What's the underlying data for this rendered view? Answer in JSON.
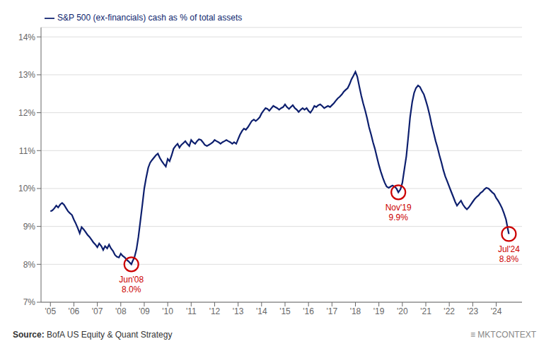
{
  "chart_data": {
    "type": "line",
    "source": "Source: BofA US Equity & Quant Strategy",
    "credit": "≡ MKTCONTEXT",
    "xlim": [
      2004.6,
      2025.1
    ],
    "xticks": [
      {
        "value": 2005,
        "label": "'05"
      },
      {
        "value": 2006,
        "label": "'06"
      },
      {
        "value": 2007,
        "label": "'07"
      },
      {
        "value": 2008,
        "label": "'08"
      },
      {
        "value": 2009,
        "label": "'09"
      },
      {
        "value": 2010,
        "label": "'10"
      },
      {
        "value": 2011,
        "label": "'11"
      },
      {
        "value": 2012,
        "label": "'12"
      },
      {
        "value": 2013,
        "label": "'13"
      },
      {
        "value": 2014,
        "label": "'14"
      },
      {
        "value": 2015,
        "label": "'15"
      },
      {
        "value": 2016,
        "label": "'16"
      },
      {
        "value": 2017,
        "label": "'17"
      },
      {
        "value": 2018,
        "label": "'18"
      },
      {
        "value": 2019,
        "label": "'19"
      },
      {
        "value": 2020,
        "label": "'20"
      },
      {
        "value": 2021,
        "label": "'21"
      },
      {
        "value": 2022,
        "label": "'22"
      },
      {
        "value": 2023,
        "label": "'23"
      },
      {
        "value": 2024,
        "label": "'24"
      }
    ],
    "ylim": [
      0.07,
      0.1425
    ],
    "yticks": [
      {
        "value": 0.07,
        "label": "7%"
      },
      {
        "value": 0.08,
        "label": "8%"
      },
      {
        "value": 0.09,
        "label": "9%"
      },
      {
        "value": 0.1,
        "label": "10%"
      },
      {
        "value": 0.11,
        "label": "11%"
      },
      {
        "value": 0.12,
        "label": "12%"
      },
      {
        "value": 0.13,
        "label": "13%"
      },
      {
        "value": 0.14,
        "label": "14%"
      }
    ],
    "grid": true,
    "legend": "upper left",
    "x": [
      2005,
      2005.08,
      2005.17,
      2005.25,
      2005.33,
      2005.42,
      2005.5,
      2005.58,
      2005.67,
      2005.75,
      2005.83,
      2005.92,
      2006,
      2006.08,
      2006.17,
      2006.25,
      2006.33,
      2006.42,
      2006.5,
      2006.58,
      2006.67,
      2006.75,
      2006.83,
      2006.92,
      2007,
      2007.08,
      2007.17,
      2007.25,
      2007.33,
      2007.42,
      2007.5,
      2007.58,
      2007.67,
      2007.75,
      2007.83,
      2007.92,
      2008,
      2008.08,
      2008.17,
      2008.25,
      2008.33,
      2008.42,
      2008.45,
      2008.5,
      2008.58,
      2008.67,
      2008.75,
      2008.83,
      2008.92,
      2009,
      2009.08,
      2009.17,
      2009.25,
      2009.33,
      2009.42,
      2009.5,
      2009.58,
      2009.67,
      2009.75,
      2009.83,
      2009.92,
      2010,
      2010.08,
      2010.17,
      2010.25,
      2010.33,
      2010.42,
      2010.5,
      2010.58,
      2010.67,
      2010.75,
      2010.83,
      2010.92,
      2011,
      2011.08,
      2011.17,
      2011.25,
      2011.33,
      2011.42,
      2011.5,
      2011.58,
      2011.67,
      2011.75,
      2011.83,
      2011.92,
      2012,
      2012.08,
      2012.17,
      2012.25,
      2012.33,
      2012.42,
      2012.5,
      2012.58,
      2012.67,
      2012.75,
      2012.83,
      2012.92,
      2013,
      2013.08,
      2013.17,
      2013.25,
      2013.33,
      2013.42,
      2013.5,
      2013.58,
      2013.67,
      2013.75,
      2013.83,
      2013.92,
      2014,
      2014.08,
      2014.17,
      2014.25,
      2014.33,
      2014.42,
      2014.5,
      2014.58,
      2014.67,
      2014.75,
      2014.83,
      2014.92,
      2015,
      2015.08,
      2015.17,
      2015.25,
      2015.33,
      2015.42,
      2015.5,
      2015.58,
      2015.67,
      2015.75,
      2015.83,
      2015.92,
      2016,
      2016.08,
      2016.17,
      2016.25,
      2016.33,
      2016.42,
      2016.5,
      2016.58,
      2016.67,
      2016.75,
      2016.83,
      2016.92,
      2017,
      2017.08,
      2017.17,
      2017.25,
      2017.33,
      2017.42,
      2017.5,
      2017.58,
      2017.67,
      2017.75,
      2017.83,
      2017.92,
      2018,
      2018.08,
      2018.17,
      2018.25,
      2018.33,
      2018.42,
      2018.5,
      2018.58,
      2018.67,
      2018.75,
      2018.83,
      2018.92,
      2019,
      2019.08,
      2019.17,
      2019.25,
      2019.33,
      2019.42,
      2019.5,
      2019.58,
      2019.67,
      2019.75,
      2019.83,
      2019.92,
      2020,
      2020.08,
      2020.17,
      2020.25,
      2020.33,
      2020.42,
      2020.5,
      2020.58,
      2020.67,
      2020.75,
      2020.83,
      2020.92,
      2021,
      2021.08,
      2021.17,
      2021.25,
      2021.33,
      2021.42,
      2021.5,
      2021.58,
      2021.67,
      2021.75,
      2021.83,
      2021.92,
      2022,
      2022.08,
      2022.17,
      2022.25,
      2022.33,
      2022.42,
      2022.5,
      2022.58,
      2022.67,
      2022.75,
      2022.83,
      2022.92,
      2023,
      2023.08,
      2023.17,
      2023.25,
      2023.33,
      2023.42,
      2023.5,
      2023.58,
      2023.67,
      2023.75,
      2023.83,
      2023.92,
      2024,
      2024.08,
      2024.17,
      2024.25,
      2024.33,
      2024.42,
      2024.5,
      2024.54
    ],
    "series": [
      {
        "name": "S&P 500 (ex-financials) cash as % of total assets",
        "color": "#0d1f6e",
        "values": [
          0.094,
          0.0942,
          0.0948,
          0.0955,
          0.095,
          0.0958,
          0.0962,
          0.0957,
          0.0948,
          0.094,
          0.0935,
          0.093,
          0.0918,
          0.0908,
          0.0895,
          0.0882,
          0.0898,
          0.0892,
          0.0885,
          0.0878,
          0.0872,
          0.0865,
          0.0858,
          0.0852,
          0.0845,
          0.0855,
          0.0848,
          0.0838,
          0.0848,
          0.0842,
          0.0852,
          0.0842,
          0.0835,
          0.0825,
          0.082,
          0.0818,
          0.0828,
          0.0822,
          0.0818,
          0.0812,
          0.0808,
          0.0802,
          0.08,
          0.0808,
          0.0818,
          0.084,
          0.0872,
          0.0912,
          0.0958,
          0.1,
          0.1028,
          0.1055,
          0.1068,
          0.1075,
          0.1082,
          0.1088,
          0.1092,
          0.108,
          0.1072,
          0.1065,
          0.1058,
          0.1078,
          0.1072,
          0.1088,
          0.1105,
          0.1112,
          0.1118,
          0.1108,
          0.1115,
          0.112,
          0.1125,
          0.1118,
          0.1112,
          0.1128,
          0.1122,
          0.1118,
          0.1125,
          0.113,
          0.1128,
          0.1122,
          0.1115,
          0.1112,
          0.1115,
          0.1118,
          0.1122,
          0.1128,
          0.1125,
          0.1122,
          0.1118,
          0.1122,
          0.1125,
          0.1128,
          0.1125,
          0.1122,
          0.1118,
          0.1122,
          0.1118,
          0.113,
          0.1142,
          0.1152,
          0.1158,
          0.1155,
          0.1162,
          0.117,
          0.1178,
          0.1182,
          0.1178,
          0.1182,
          0.1188,
          0.1198,
          0.1205,
          0.1212,
          0.121,
          0.1205,
          0.1212,
          0.1218,
          0.1215,
          0.1212,
          0.1208,
          0.1212,
          0.1215,
          0.1222,
          0.1215,
          0.121,
          0.1215,
          0.122,
          0.1212,
          0.1208,
          0.1202,
          0.1208,
          0.1212,
          0.1208,
          0.1212,
          0.1205,
          0.12,
          0.1208,
          0.1218,
          0.1215,
          0.122,
          0.1222,
          0.1218,
          0.1212,
          0.1215,
          0.1218,
          0.1215,
          0.122,
          0.1225,
          0.1232,
          0.1238,
          0.1242,
          0.1248,
          0.1255,
          0.126,
          0.1265,
          0.1275,
          0.1288,
          0.1298,
          0.1308,
          0.1295,
          0.1268,
          0.1245,
          0.1225,
          0.1205,
          0.1185,
          0.1162,
          0.1142,
          0.1122,
          0.1105,
          0.1082,
          0.1062,
          0.1045,
          0.1028,
          0.1015,
          0.1005,
          0.1002,
          0.1005,
          0.1008,
          0.1005,
          0.1,
          0.099,
          0.0998,
          0.1015,
          0.1048,
          0.1085,
          0.1135,
          0.1188,
          0.1228,
          0.1252,
          0.1265,
          0.1272,
          0.1268,
          0.1258,
          0.1248,
          0.1232,
          0.1215,
          0.1192,
          0.1168,
          0.1148,
          0.1125,
          0.1108,
          0.1088,
          0.1068,
          0.1048,
          0.1032,
          0.1018,
          0.1005,
          0.0992,
          0.0978,
          0.0965,
          0.0955,
          0.0962,
          0.0968,
          0.0958,
          0.095,
          0.0945,
          0.095,
          0.0958,
          0.0965,
          0.0972,
          0.0978,
          0.0982,
          0.0988,
          0.0992,
          0.0998,
          0.1002,
          0.1,
          0.0995,
          0.099,
          0.0985,
          0.0975,
          0.0968,
          0.0958,
          0.0948,
          0.0935,
          0.0918,
          0.0892,
          0.088
        ]
      }
    ],
    "annotations": [
      {
        "x": 2008.45,
        "y": 0.08,
        "text": [
          "Jun'08",
          "8.0%"
        ],
        "color": "#cc0000"
      },
      {
        "x": 2019.83,
        "y": 0.099,
        "text": [
          "Nov'19",
          "9.9%"
        ],
        "color": "#cc0000"
      },
      {
        "x": 2024.54,
        "y": 0.088,
        "text": [
          "Jul'24",
          "8.8%"
        ],
        "color": "#cc0000"
      }
    ]
  }
}
